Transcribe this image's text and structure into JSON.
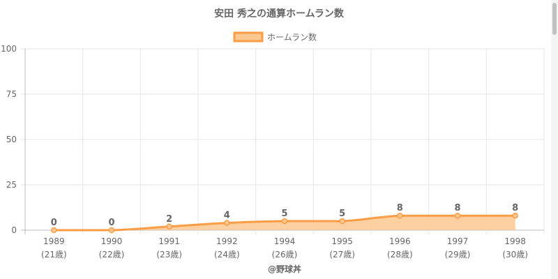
{
  "chart_data": {
    "type": "area",
    "title": "安田 秀之の通算ホームラン数",
    "legend": {
      "label": "ホームラン数",
      "position": "top"
    },
    "categories": [
      "1989",
      "1990",
      "1991",
      "1992",
      "1994",
      "1995",
      "1996",
      "1997",
      "1998"
    ],
    "sublabels": [
      "(21歳)",
      "(22歳)",
      "(23歳)",
      "(24歳)",
      "(26歳)",
      "(27歳)",
      "(28歳)",
      "(29歳)",
      "(30歳)"
    ],
    "values": [
      0,
      0,
      2,
      4,
      5,
      5,
      8,
      8,
      8
    ],
    "ylim": [
      0,
      100
    ],
    "yticks": [
      0,
      25,
      50,
      75,
      100
    ],
    "grid": true,
    "xlabel": "@野球丼",
    "ylabel": "",
    "colors": {
      "line": "#fb9c46",
      "fill": "#fdc890",
      "title": "#666666",
      "text": "#666666",
      "grid": "#e5e5e5",
      "axis": "#bbbbbb"
    }
  }
}
